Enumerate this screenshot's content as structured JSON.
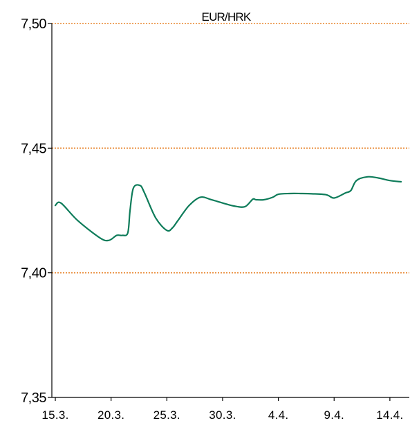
{
  "chart_data": {
    "type": "line",
    "title": "EUR/HRK",
    "xlabel": "",
    "ylabel": "",
    "ylim": [
      7.35,
      7.5
    ],
    "yticks": [
      "7,35",
      "7,40",
      "7,45",
      "7,50"
    ],
    "ytick_values": [
      7.35,
      7.4,
      7.45,
      7.5
    ],
    "xlim": [
      0,
      31.5
    ],
    "xtick_labels": [
      "15.3.",
      "20.3.",
      "25.3.",
      "30.3.",
      "4.4.",
      "9.4.",
      "14.4."
    ],
    "xtick_values": [
      0,
      5,
      10,
      15,
      20,
      25,
      30
    ],
    "grid": "horizontal, dotted",
    "series": [
      {
        "name": "",
        "color": "#0e7c5a",
        "x": [
          0,
          0.5,
          2,
          4,
          4.8,
          5.5,
          6,
          6.5,
          6.7,
          7,
          7.6,
          8,
          9,
          10,
          10.5,
          11,
          12,
          13,
          14,
          15,
          16,
          17,
          17.7,
          18,
          18.7,
          19.5,
          20,
          21,
          22,
          23,
          24.3,
          25,
          26,
          26.5,
          27,
          28,
          29,
          30,
          31
        ],
        "values": [
          7.427,
          7.428,
          7.421,
          7.414,
          7.413,
          7.415,
          7.415,
          7.416,
          7.425,
          7.434,
          7.435,
          7.432,
          7.422,
          7.417,
          7.418,
          7.421,
          7.427,
          7.4303,
          7.4293,
          7.428,
          7.4268,
          7.4265,
          7.4295,
          7.4293,
          7.4293,
          7.4303,
          7.4315,
          7.4318,
          7.4318,
          7.4317,
          7.4313,
          7.43,
          7.432,
          7.433,
          7.437,
          7.4385,
          7.438,
          7.437,
          7.4365
        ]
      }
    ],
    "colors": {
      "line": "#0e7c5a",
      "grid": "#e8852e",
      "axis": "#000000"
    }
  }
}
